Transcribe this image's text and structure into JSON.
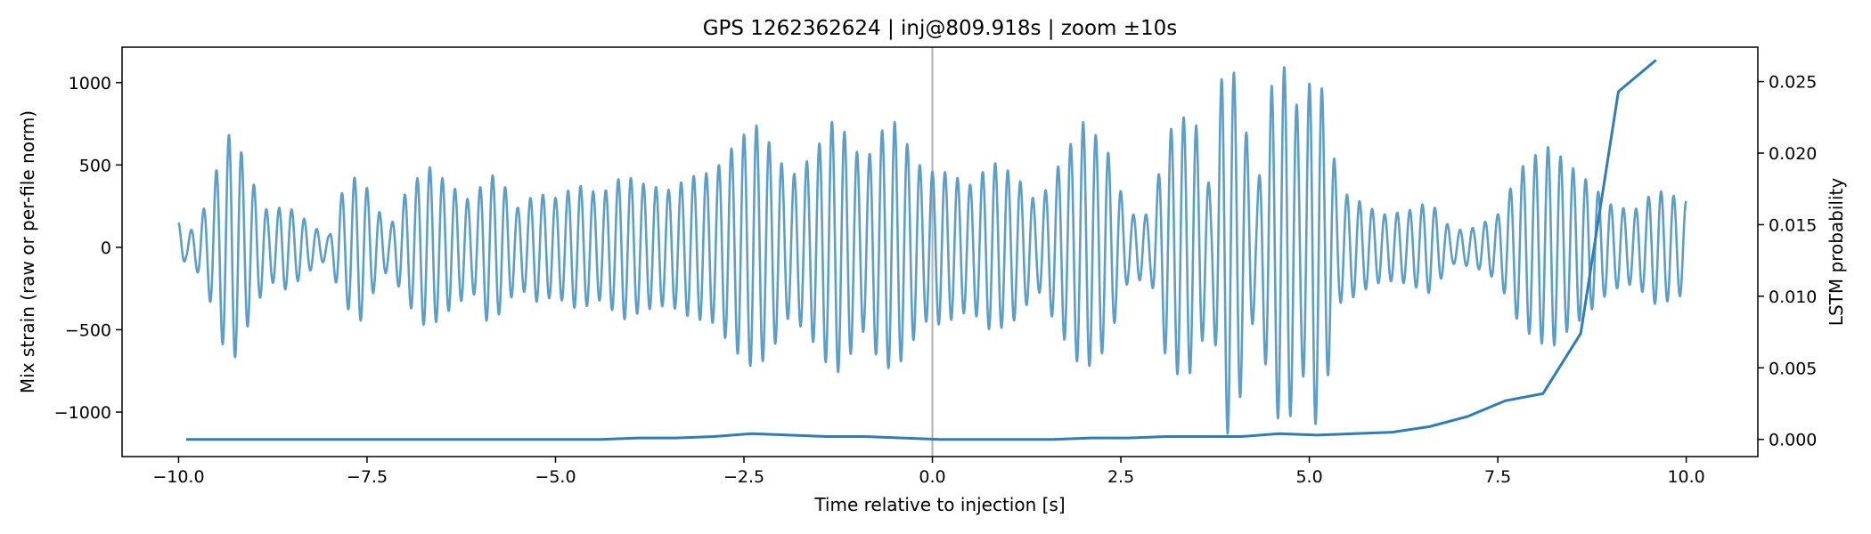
{
  "chart_data": {
    "type": "line",
    "title": "GPS 1262362624 | inj@809.918s | zoom ±10s",
    "xlabel": "Time relative to injection [s]",
    "ylabel_left": "Mix strain (raw or per-file norm)",
    "ylabel_right": "LSTM probability",
    "xlim": [
      -10.75,
      10.95
    ],
    "ylim_left": [
      -1270,
      1215
    ],
    "ylim_right": [
      -0.0012,
      0.0274
    ],
    "x_ticks": [
      -10.0,
      -7.5,
      -5.0,
      -2.5,
      0.0,
      2.5,
      5.0,
      7.5,
      10.0
    ],
    "x_tick_labels": [
      "−10.0",
      "−7.5",
      "−5.0",
      "−2.5",
      "0.0",
      "2.5",
      "5.0",
      "7.5",
      "10.0"
    ],
    "y_left_ticks": [
      -1000,
      -500,
      0,
      500,
      1000
    ],
    "y_left_tick_labels": [
      "−1000",
      "−500",
      "0",
      "500",
      "1000"
    ],
    "y_right_ticks": [
      0.0,
      0.005,
      0.01,
      0.015,
      0.02,
      0.025
    ],
    "y_right_tick_labels": [
      "0.000",
      "0.005",
      "0.010",
      "0.015",
      "0.020",
      "0.025"
    ],
    "injection_marker_x": 0.0,
    "grid": false,
    "colors": {
      "strain": "#5b9ec9",
      "lstm": "#2f7db8",
      "marker": "#b0b0b0"
    },
    "series": [
      {
        "axis": "left",
        "style": "oscillating strain, ~6 Hz",
        "x_start": -10.0,
        "x_end": 10.0,
        "frequency_hz": 6,
        "envelope": {
          "t": [
            -10.0,
            -9.9,
            -9.75,
            -9.6,
            -9.45,
            -9.3,
            -9.15,
            -9.0,
            -8.8,
            -8.6,
            -8.4,
            -8.2,
            -8.0,
            -7.85,
            -7.6,
            -7.4,
            -7.2,
            -7.0,
            -6.7,
            -6.4,
            -6.1,
            -5.9,
            -5.7,
            -5.5,
            -5.25,
            -5.0,
            -4.7,
            -4.4,
            -4.1,
            -3.8,
            -3.5,
            -3.2,
            -2.9,
            -2.6,
            -2.35,
            -2.1,
            -1.9,
            -1.7,
            -1.5,
            -1.3,
            -1.1,
            -0.9,
            -0.7,
            -0.5,
            -0.3,
            -0.1,
            0.1,
            0.3,
            0.5,
            0.8,
            1.1,
            1.4,
            1.7,
            2.0,
            2.3,
            2.6,
            2.9,
            3.1,
            3.3,
            3.5,
            3.7,
            3.85,
            3.95,
            4.1,
            4.3,
            4.5,
            4.7,
            4.9,
            5.05,
            5.2,
            5.4,
            5.6,
            5.8,
            6.0,
            6.3,
            6.6,
            6.9,
            7.2,
            7.5,
            7.8,
            8.0,
            8.2,
            8.4,
            8.7,
            9.0,
            9.3,
            9.6,
            9.8,
            10.0
          ],
          "a": [
            150,
            70,
            150,
            300,
            550,
            720,
            560,
            380,
            200,
            260,
            200,
            120,
            70,
            320,
            460,
            260,
            120,
            320,
            500,
            380,
            270,
            460,
            390,
            240,
            330,
            300,
            380,
            320,
            440,
            380,
            350,
            430,
            460,
            640,
            750,
            600,
            420,
            500,
            630,
            790,
            660,
            500,
            700,
            760,
            600,
            450,
            470,
            430,
            380,
            520,
            440,
            260,
            520,
            760,
            620,
            200,
            200,
            680,
            800,
            740,
            320,
            1100,
            1150,
            880,
            320,
            980,
            1120,
            740,
            1120,
            920,
            340,
            300,
            240,
            200,
            220,
            280,
            100,
            120,
            200,
            480,
            560,
            620,
            520,
            400,
            260,
            220,
            350,
            320,
            280
          ]
        }
      },
      {
        "axis": "right",
        "style": "LSTM probability",
        "x": [
          -9.9,
          -9.4,
          -8.9,
          -8.4,
          -7.9,
          -7.4,
          -6.9,
          -6.4,
          -5.9,
          -5.4,
          -4.9,
          -4.4,
          -3.9,
          -3.4,
          -2.9,
          -2.4,
          -1.9,
          -1.4,
          -0.9,
          -0.4,
          0.1,
          0.6,
          1.1,
          1.6,
          2.1,
          2.6,
          3.1,
          3.6,
          4.1,
          4.6,
          5.1,
          5.6,
          6.1,
          6.6,
          7.1,
          7.6,
          8.1,
          8.6,
          9.1,
          9.6
        ],
        "values": [
          0.0,
          0.0,
          0.0,
          0.0,
          0.0,
          0.0,
          0.0,
          0.0,
          0.0,
          0.0,
          0.0,
          0.0,
          0.0001,
          0.0001,
          0.0002,
          0.0004,
          0.0003,
          0.0002,
          0.0002,
          0.0001,
          0.0,
          0.0,
          0.0,
          0.0,
          0.0001,
          0.0001,
          0.0002,
          0.0002,
          0.0002,
          0.0004,
          0.0003,
          0.0004,
          0.0005,
          0.0009,
          0.0016,
          0.0027,
          0.0032,
          0.0074,
          0.0243,
          0.0265
        ]
      }
    ]
  }
}
